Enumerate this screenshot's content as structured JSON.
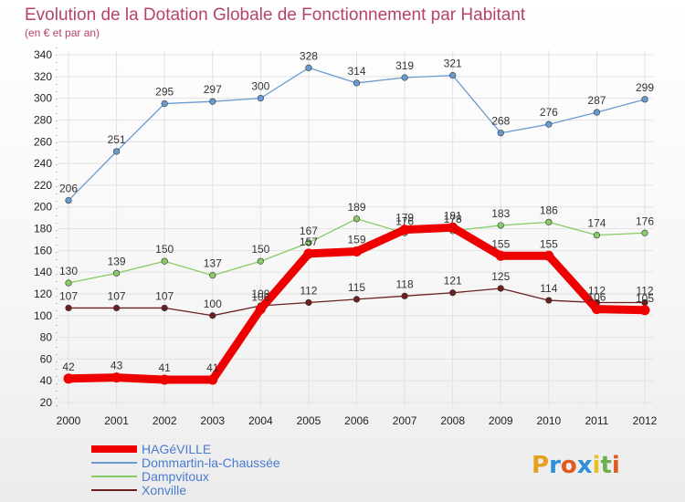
{
  "colors": {
    "HAGéVILLE": "#ee0000",
    "Dommartin-la-Chaussée": "#6a9bd0",
    "Dampvitoux": "#88cc66",
    "Xonville": "#6b1f1f"
  },
  "logo": {
    "text": "Proxiti"
  },
  "chart_data": {
    "type": "line",
    "title": "Evolution de la Dotation Globale de Fonctionnement par Habitant",
    "subtitle": "(en € et par an)",
    "x": [
      "2000",
      "2001",
      "2002",
      "2003",
      "2004",
      "2005",
      "2006",
      "2007",
      "2008",
      "2009",
      "2010",
      "2011",
      "2012"
    ],
    "ylim": [
      20,
      340
    ],
    "yticks": [
      20,
      40,
      60,
      80,
      100,
      120,
      140,
      160,
      180,
      200,
      220,
      240,
      260,
      280,
      300,
      320,
      340
    ],
    "grid": true,
    "legend_position": "bottom-left",
    "series": [
      {
        "name": "Dommartin-la-Chaussée",
        "values": [
          206,
          251,
          295,
          297,
          300,
          328,
          314,
          319,
          321,
          268,
          276,
          287,
          299
        ]
      },
      {
        "name": "Dampvitoux",
        "values": [
          130,
          139,
          150,
          137,
          150,
          167,
          189,
          176,
          178,
          183,
          186,
          174,
          176
        ]
      },
      {
        "name": "Xonville",
        "values": [
          107,
          107,
          107,
          100,
          109,
          112,
          115,
          118,
          121,
          125,
          114,
          112,
          112
        ]
      },
      {
        "name": "HAGéVILLE",
        "values": [
          42,
          43,
          41,
          41,
          106,
          157,
          159,
          179,
          181,
          155,
          155,
          106,
          105
        ]
      }
    ]
  }
}
